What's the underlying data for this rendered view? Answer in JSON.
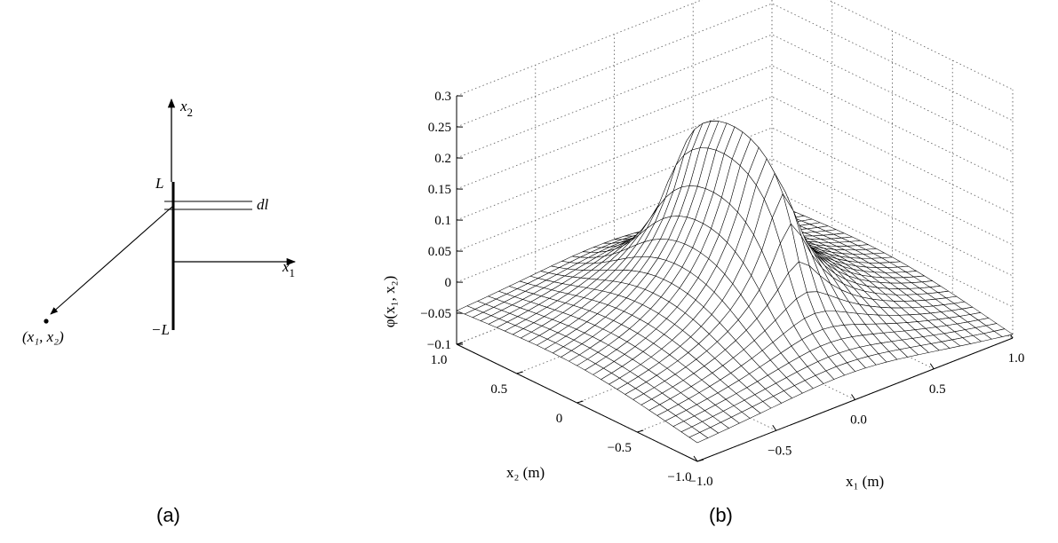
{
  "panel_a": {
    "caption": "(a)",
    "axis_x2": "x",
    "axis_x2_sub": "2",
    "axis_x1": "x",
    "axis_x1_sub": "1",
    "label_L": "L",
    "label_minus_L": "−L",
    "label_dl": "dl",
    "point_label": "(x₁, x₂)"
  },
  "panel_b": {
    "caption": "(b)"
  },
  "chart_data": {
    "type": "surface",
    "zlabel": "φ(x₁, x₂)",
    "xlabel": "x₁ (m)",
    "ylabel": "x₂ (m)",
    "zlim": [
      -0.1,
      0.3
    ],
    "xlim": [
      -1.0,
      1.0
    ],
    "ylim": [
      -1.0,
      1.0
    ],
    "z_ticks": [
      "0.3",
      "0.25",
      "0.2",
      "0.15",
      "0.1",
      "0.05",
      "0",
      "−0.05",
      "−0.1"
    ],
    "z_tick_values": [
      0.3,
      0.25,
      0.2,
      0.15,
      0.1,
      0.05,
      0,
      -0.05,
      -0.1
    ],
    "x1_ticks": [
      "−1.0",
      "−0.5",
      "0.0",
      "0.5",
      "1.0"
    ],
    "x1_tick_values": [
      -1.0,
      -0.5,
      0.0,
      0.5,
      1.0
    ],
    "x2_ticks": [
      "1.0",
      "0.5",
      "0",
      "−0.5",
      "−1.0"
    ],
    "x2_tick_values": [
      1.0,
      0.5,
      0,
      -0.5,
      -1.0
    ],
    "grid": true,
    "surface": {
      "description": "mesh of potential of a line charge segment",
      "mesh_n": 31,
      "peak_value": 0.245,
      "corner_values": {
        "x1=-1,x2=1": -0.05,
        "x1=1,x2=1": -0.068,
        "x1=-1,x2=-1": -0.068,
        "x1=1,x2=-1": -0.09
      }
    }
  }
}
